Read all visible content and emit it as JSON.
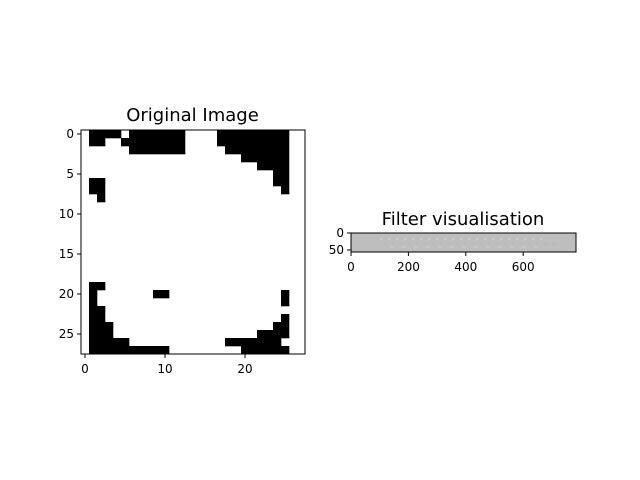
{
  "chart_data": [
    {
      "type": "heatmap",
      "title": "Original Image",
      "rows": 28,
      "cols": 28,
      "xlim": [
        -0.5,
        27.5
      ],
      "ylim": [
        27.5,
        -0.5
      ],
      "xticks": [
        0,
        10,
        20
      ],
      "yticks": [
        0,
        5,
        10,
        15,
        20,
        25
      ],
      "colormap": {
        "0": "#000000",
        "1": "#ffffff"
      },
      "black_runs": [
        [
          0,
          1,
          4
        ],
        [
          0,
          6,
          12
        ],
        [
          0,
          17,
          25
        ],
        [
          1,
          1,
          2
        ],
        [
          1,
          5,
          12
        ],
        [
          1,
          17,
          25
        ],
        [
          2,
          6,
          12
        ],
        [
          2,
          18,
          25
        ],
        [
          3,
          20,
          25
        ],
        [
          4,
          22,
          25
        ],
        [
          5,
          24,
          25
        ],
        [
          6,
          1,
          2
        ],
        [
          6,
          24,
          25
        ],
        [
          7,
          1,
          2
        ],
        [
          7,
          25,
          25
        ],
        [
          8,
          2,
          2
        ],
        [
          19,
          1,
          2
        ],
        [
          20,
          1,
          1
        ],
        [
          20,
          9,
          10
        ],
        [
          20,
          25,
          25
        ],
        [
          21,
          1,
          1
        ],
        [
          21,
          25,
          25
        ],
        [
          22,
          1,
          2
        ],
        [
          23,
          1,
          2
        ],
        [
          23,
          25,
          25
        ],
        [
          24,
          1,
          3
        ],
        [
          24,
          24,
          25
        ],
        [
          25,
          1,
          3
        ],
        [
          25,
          22,
          25
        ],
        [
          26,
          1,
          5
        ],
        [
          26,
          18,
          24
        ],
        [
          27,
          1,
          10
        ],
        [
          27,
          20,
          25
        ]
      ]
    },
    {
      "type": "heatmap",
      "title": "Filter visualisation",
      "width": 784,
      "height": 56,
      "xlim": [
        0,
        784
      ],
      "ylim": [
        56,
        0
      ],
      "xticks": [
        0,
        200,
        400,
        600
      ],
      "yticks": [
        0,
        50
      ],
      "background_color": "#bebebe"
    }
  ]
}
